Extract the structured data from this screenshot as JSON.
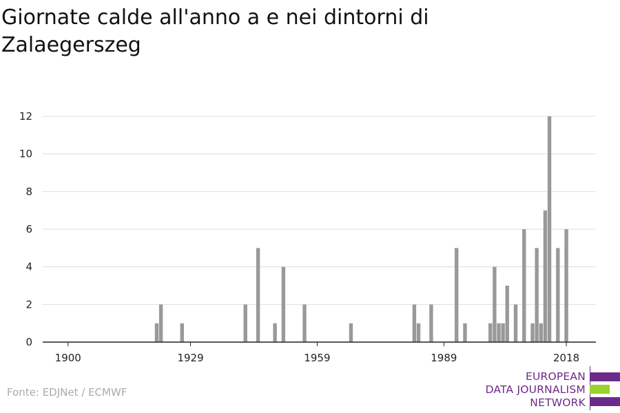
{
  "title": "Giornate calde all'anno a e nei dintorni di Zalaegerszeg",
  "source": "Fonte: EDJNet / ECMWF",
  "logo": {
    "line1": "EUROPEAN",
    "line2": "DATA JOURNALISM",
    "line3": "NETWORK",
    "purple": "#6c2a8a",
    "green": "#9bd12a"
  },
  "colors": {
    "bar": "#999999",
    "grid": "#dddddd",
    "axis": "#222222"
  },
  "chart_data": {
    "type": "bar",
    "title": "Giornate calde all'anno a e nei dintorni di Zalaegerszeg",
    "xlabel": "",
    "ylabel": "",
    "xlim": [
      1894,
      2025
    ],
    "ylim": [
      0,
      12
    ],
    "x_ticks": [
      1900,
      1929,
      1959,
      1989,
      2018
    ],
    "y_ticks": [
      0,
      2,
      4,
      6,
      8,
      10,
      12
    ],
    "grid": true,
    "x": [
      1921,
      1922,
      1927,
      1942,
      1945,
      1949,
      1951,
      1956,
      1967,
      1982,
      1983,
      1986,
      1992,
      1994,
      2000,
      2001,
      2002,
      2003,
      2004,
      2006,
      2008,
      2010,
      2011,
      2012,
      2013,
      2014,
      2016,
      2018
    ],
    "values": [
      1,
      2,
      1,
      2,
      5,
      1,
      4,
      2,
      1,
      2,
      1,
      2,
      5,
      1,
      1,
      4,
      1,
      1,
      3,
      2,
      6,
      1,
      5,
      1,
      7,
      12,
      5,
      6
    ]
  }
}
